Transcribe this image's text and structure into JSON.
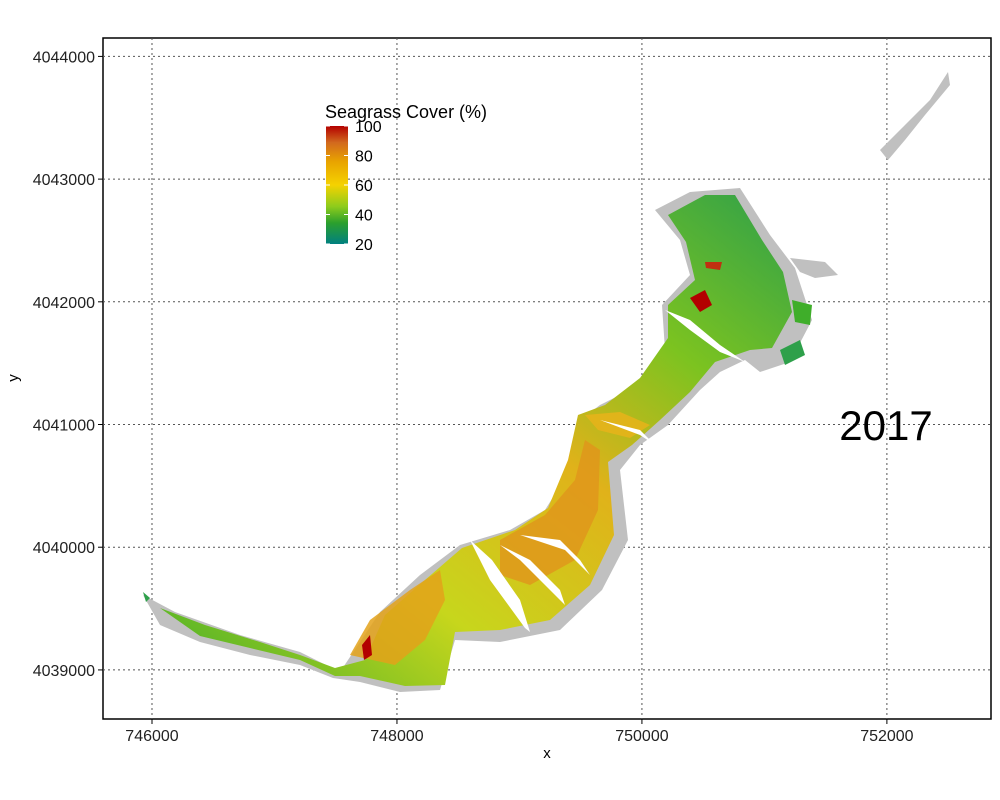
{
  "chart_data": {
    "type": "raster_map",
    "title": "",
    "year_label": "2017",
    "xlabel": "x",
    "ylabel": "y",
    "xlim": [
      745600,
      752850
    ],
    "ylim": [
      4038600,
      4044150
    ],
    "x_ticks": [
      {
        "value": 746000,
        "label": "746000"
      },
      {
        "value": 748000,
        "label": "748000"
      },
      {
        "value": 750000,
        "label": "750000"
      },
      {
        "value": 752000,
        "label": "752000"
      }
    ],
    "y_ticks": [
      {
        "value": 4039000,
        "label": "4039000"
      },
      {
        "value": 4040000,
        "label": "4040000"
      },
      {
        "value": 4041000,
        "label": "4041000"
      },
      {
        "value": 4042000,
        "label": "4042000"
      },
      {
        "value": 4043000,
        "label": "4043000"
      },
      {
        "value": 4044000,
        "label": "4044000"
      }
    ],
    "grid": true,
    "legend": {
      "title": "Seagrass Cover (%)",
      "placement": "top-left",
      "range": [
        20,
        100
      ],
      "ticks": [
        {
          "value": 100,
          "label": "100"
        },
        {
          "value": 80,
          "label": "80"
        },
        {
          "value": 60,
          "label": "60"
        },
        {
          "value": 40,
          "label": "40"
        },
        {
          "value": 20,
          "label": "20"
        }
      ],
      "colors": [
        "#008080",
        "#2ca02c",
        "#8fcc1c",
        "#f5d200",
        "#e8a300",
        "#d2691e",
        "#b30000"
      ]
    },
    "no_cover_color": "#c0c0c0"
  }
}
